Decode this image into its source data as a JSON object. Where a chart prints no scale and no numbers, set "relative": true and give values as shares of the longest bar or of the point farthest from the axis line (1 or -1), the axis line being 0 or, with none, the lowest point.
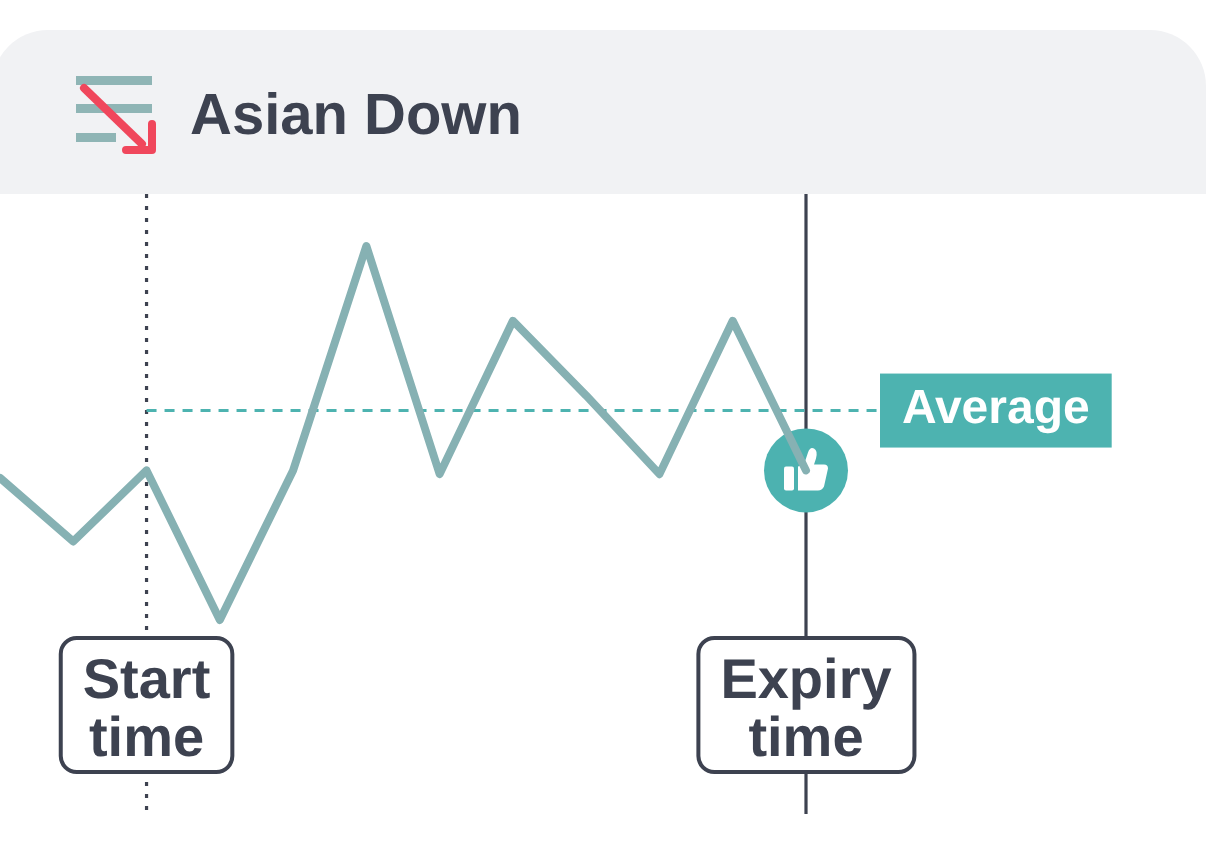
{
  "chart_data": {
    "type": "line",
    "title": "Asian Down",
    "relative": true,
    "categories": [
      null,
      null,
      "Start time",
      null,
      null,
      null,
      null,
      null,
      null,
      null,
      null,
      "Expiry time"
    ],
    "series": [
      {
        "color": "#86b1b3",
        "values": [
          0.38,
          0.21,
          0.4,
          0,
          0.4,
          1,
          0.39,
          0.8,
          0.6,
          0.39,
          0.8,
          0.4
        ]
      }
    ],
    "ref_lines": [
      {
        "axis": "x",
        "value": "Start time",
        "color": "#3d4250",
        "line_style": "dotted"
      },
      {
        "axis": "x",
        "value": "Expiry time",
        "color": "#3d4250",
        "line_style": "solid"
      },
      {
        "axis": "y",
        "value": 0.56,
        "label": "Average",
        "color": "#4db3b0",
        "line_style": "dashed"
      }
    ]
  }
}
